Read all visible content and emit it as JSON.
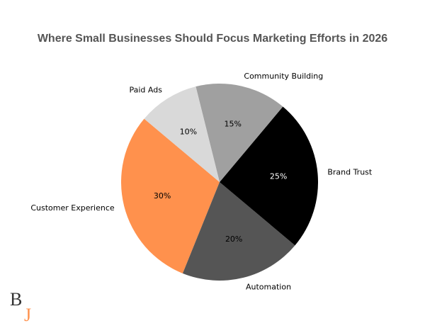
{
  "chart_data": {
    "type": "pie",
    "title": "Where Small Businesses Should Focus Marketing Efforts in 2026",
    "categories": [
      "Customer Experience",
      "Automation",
      "Brand Trust",
      "Community Building",
      "Paid Ads"
    ],
    "values": [
      30,
      20,
      25,
      15,
      10
    ],
    "value_labels": [
      "30%",
      "20%",
      "25%",
      "15%",
      "10%"
    ],
    "colors": [
      "#ff914d",
      "#555555",
      "#000000",
      "#a0a0a0",
      "#d9d9d9"
    ],
    "start_angle": 140
  },
  "logo": {
    "letters": [
      "B",
      "J"
    ]
  }
}
